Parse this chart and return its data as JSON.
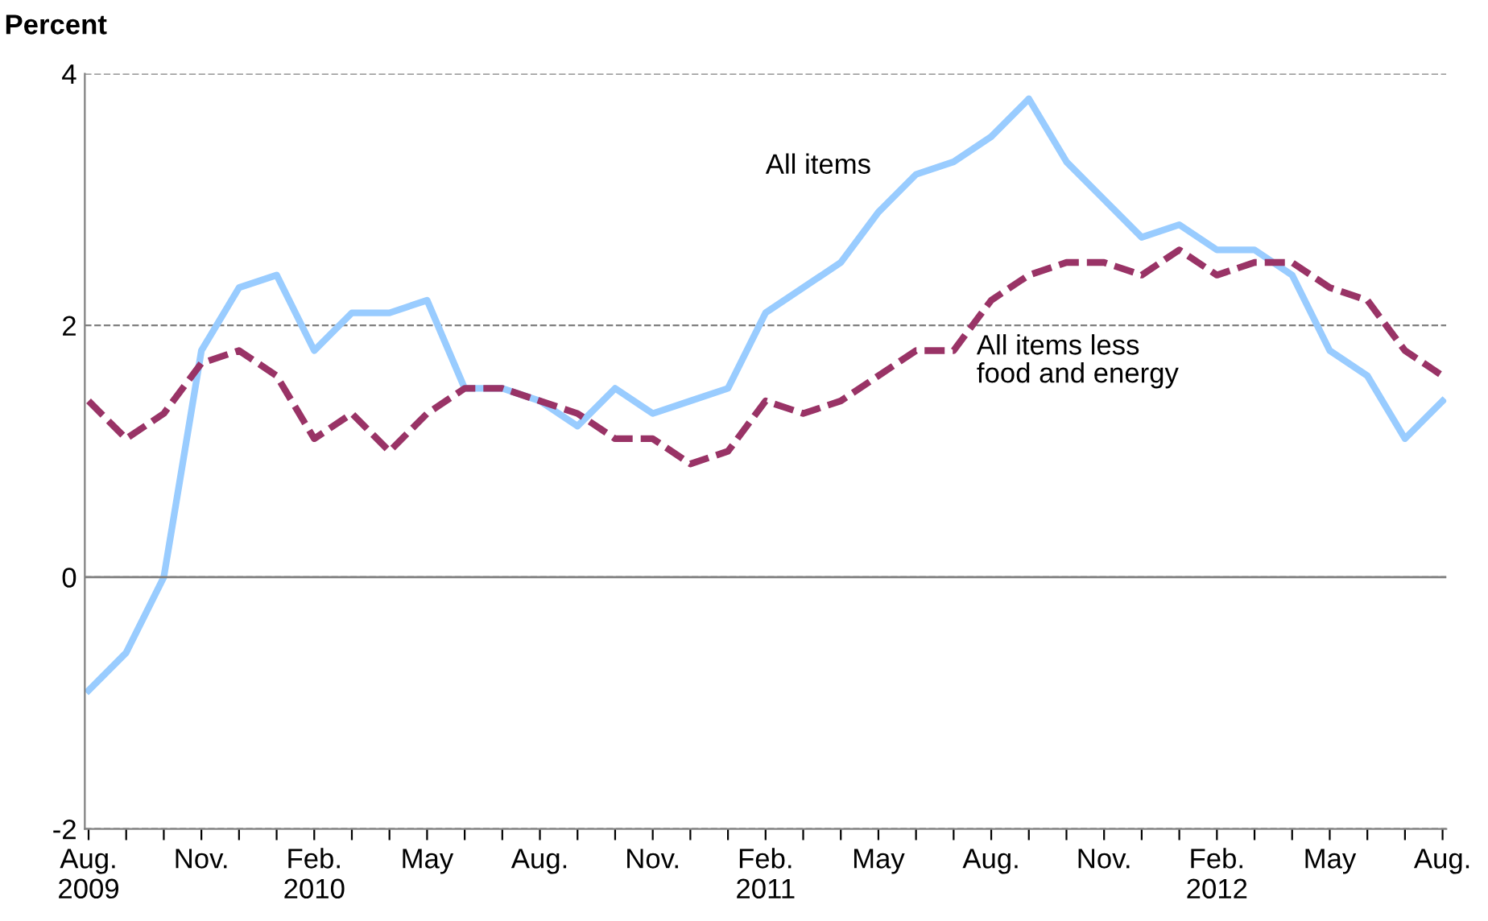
{
  "chart_data": {
    "type": "line",
    "ylabel": "Percent",
    "categories": [
      "Aug.\n2009",
      null,
      null,
      "Nov.",
      null,
      null,
      "Feb.\n2010",
      null,
      null,
      "May",
      null,
      null,
      "Aug.",
      null,
      null,
      "Nov.",
      null,
      null,
      "Feb.\n2011",
      null,
      null,
      "May",
      null,
      null,
      "Aug.",
      null,
      null,
      "Nov.",
      null,
      null,
      "Feb.\n2012",
      null,
      null,
      "May",
      null,
      null,
      "Aug."
    ],
    "series": [
      {
        "name": "All items",
        "color": "#99ccff",
        "line_style": "solid",
        "values": [
          -0.9,
          -0.6,
          0,
          1.8,
          2.3,
          2.4,
          1.8,
          2.1,
          2.1,
          2.2,
          1.5,
          1.5,
          1.4,
          1.2,
          1.5,
          1.3,
          1.4,
          1.5,
          2.1,
          2.3,
          2.5,
          2.9,
          3.2,
          3.3,
          3.5,
          3.8,
          3.3,
          3.0,
          2.7,
          2.8,
          2.6,
          2.6,
          2.4,
          1.8,
          1.6,
          1.1,
          1.4
        ]
      },
      {
        "name": "All items less\nfood and energy",
        "color": "#993366",
        "line_style": "dashed",
        "values": [
          1.4,
          1.1,
          1.3,
          1.7,
          1.8,
          1.6,
          1.1,
          1.3,
          1.0,
          1.3,
          1.5,
          1.5,
          1.4,
          1.3,
          1.1,
          1.1,
          0.9,
          1.0,
          1.4,
          1.3,
          1.4,
          1.6,
          1.8,
          1.8,
          2.2,
          2.4,
          2.5,
          2.5,
          2.4,
          2.6,
          2.4,
          2.5,
          2.5,
          2.3,
          2.2,
          1.8,
          1.6
        ]
      }
    ],
    "ylim": [
      -2,
      4
    ],
    "yticks": [
      -2,
      0,
      2,
      4
    ],
    "grid": "y",
    "legend": false
  }
}
